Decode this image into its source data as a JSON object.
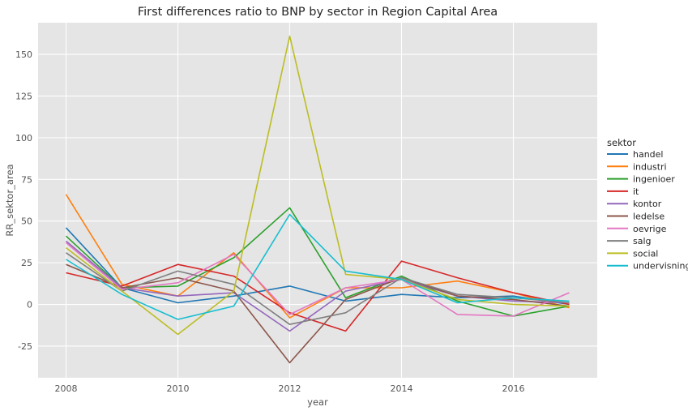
{
  "chart_data": {
    "type": "line",
    "title": "First differences ratio to BNP by sector in Region Capital Area",
    "xlabel": "year",
    "ylabel": "RR_sektor_area",
    "x": [
      2008,
      2009,
      2010,
      2011,
      2012,
      2013,
      2014,
      2015,
      2016,
      2017
    ],
    "xlim": [
      2007.5,
      2017.5
    ],
    "ylim": [
      -44,
      169
    ],
    "xticks": [
      2008,
      2010,
      2012,
      2014,
      2016
    ],
    "yticks": [
      -25,
      0,
      25,
      50,
      75,
      100,
      125,
      150
    ],
    "grid": true,
    "legend_title": "sektor",
    "legend_position": "right",
    "series": [
      {
        "name": "handel",
        "color": "#1f77b4",
        "values": [
          46,
          10,
          1,
          5,
          11,
          2,
          6,
          4,
          5,
          0
        ]
      },
      {
        "name": "industri",
        "color": "#ff7f0e",
        "values": [
          66,
          12,
          5,
          31,
          -8,
          10,
          10,
          14,
          7,
          -2
        ]
      },
      {
        "name": "ingenioer",
        "color": "#2ca02c",
        "values": [
          41,
          10,
          11,
          28,
          58,
          4,
          17,
          2,
          -7,
          -1
        ]
      },
      {
        "name": "it",
        "color": "#d62728",
        "values": [
          19,
          11,
          24,
          17,
          -5,
          -16,
          26,
          16,
          7,
          0
        ]
      },
      {
        "name": "kontor",
        "color": "#9467bd",
        "values": [
          38,
          10,
          5,
          7,
          -16,
          8,
          15,
          5,
          2,
          1
        ]
      },
      {
        "name": "ledelse",
        "color": "#8c564b",
        "values": [
          24,
          10,
          16,
          8,
          -35,
          3,
          16,
          5,
          3,
          -1
        ]
      },
      {
        "name": "oevrige",
        "color": "#e377c2",
        "values": [
          37,
          9,
          13,
          30,
          -6,
          10,
          15,
          -6,
          -7,
          7
        ]
      },
      {
        "name": "salg",
        "color": "#7f7f7f",
        "values": [
          31,
          8,
          20,
          12,
          -12,
          -5,
          16,
          6,
          4,
          1
        ]
      },
      {
        "name": "social",
        "color": "#bcbd22",
        "values": [
          34,
          8,
          -18,
          8,
          161,
          18,
          15,
          3,
          0,
          -1
        ]
      },
      {
        "name": "undervisning",
        "color": "#17becf",
        "values": [
          27,
          6,
          -9,
          -1,
          54,
          20,
          15,
          1,
          4,
          2
        ]
      }
    ]
  }
}
